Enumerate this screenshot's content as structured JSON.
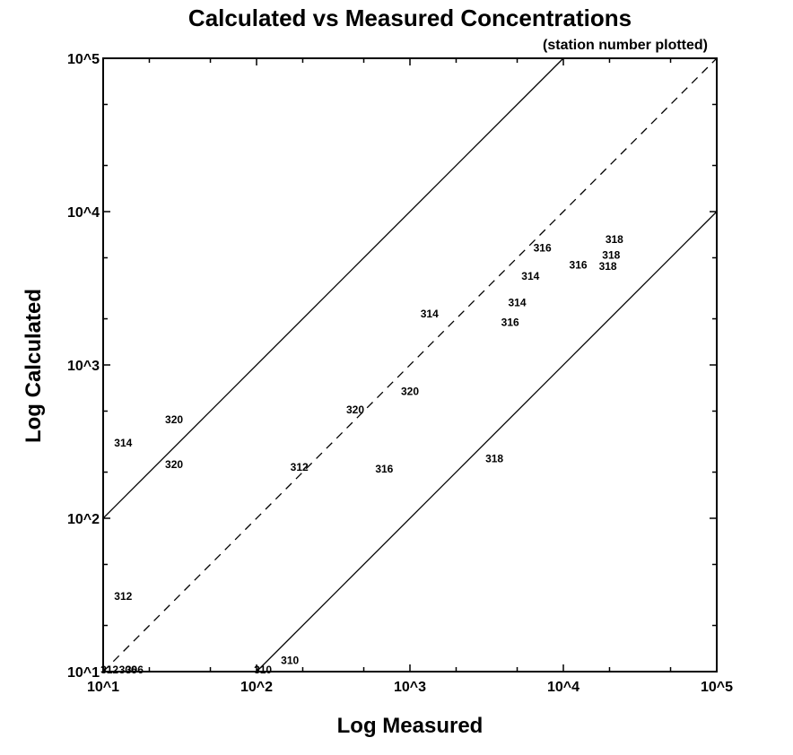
{
  "chart_data": {
    "type": "scatter",
    "title": "Calculated vs Measured Concentrations",
    "subtitle": "(station number plotted)",
    "xlabel": "Log Measured",
    "ylabel": "Log Calculated",
    "xscale": "log",
    "yscale": "log",
    "xlim": [
      10,
      100000
    ],
    "ylim": [
      10,
      100000
    ],
    "xticks": [
      {
        "value": 10,
        "label": "10^1"
      },
      {
        "value": 100,
        "label": "10^2"
      },
      {
        "value": 1000,
        "label": "10^3"
      },
      {
        "value": 10000,
        "label": "10^4"
      },
      {
        "value": 100000,
        "label": "10^5"
      }
    ],
    "yticks": [
      {
        "value": 10,
        "label": "10^1"
      },
      {
        "value": 100,
        "label": "10^2"
      },
      {
        "value": 1000,
        "label": "10^3"
      },
      {
        "value": 10000,
        "label": "10^4"
      },
      {
        "value": 100000,
        "label": "10^5"
      }
    ],
    "reference_lines": [
      {
        "name": "factor-of-10-over",
        "factor": 10,
        "style": "solid"
      },
      {
        "name": "one-to-one",
        "factor": 1,
        "style": "dashed"
      },
      {
        "name": "factor-of-10-under",
        "factor": 0.1,
        "style": "solid"
      }
    ],
    "points": [
      {
        "label": "314",
        "x": 13.5,
        "y": 310
      },
      {
        "label": "312",
        "x": 13.5,
        "y": 31
      },
      {
        "label": "312",
        "x": 11,
        "y": 10.3
      },
      {
        "label": "306",
        "x": 14.5,
        "y": 10.3
      },
      {
        "label": "306",
        "x": 16,
        "y": 10.3
      },
      {
        "label": "310",
        "x": 110,
        "y": 10.3
      },
      {
        "label": "310",
        "x": 165,
        "y": 11.8
      },
      {
        "label": "320",
        "x": 29,
        "y": 440
      },
      {
        "label": "320",
        "x": 29,
        "y": 225
      },
      {
        "label": "312",
        "x": 190,
        "y": 215
      },
      {
        "label": "320",
        "x": 440,
        "y": 510
      },
      {
        "label": "320",
        "x": 1000,
        "y": 670
      },
      {
        "label": "316",
        "x": 680,
        "y": 210
      },
      {
        "label": "314",
        "x": 1340,
        "y": 2150
      },
      {
        "label": "314",
        "x": 6100,
        "y": 3800
      },
      {
        "label": "314",
        "x": 5000,
        "y": 2550
      },
      {
        "label": "316",
        "x": 4500,
        "y": 1900
      },
      {
        "label": "316",
        "x": 7300,
        "y": 5800
      },
      {
        "label": "316",
        "x": 12500,
        "y": 4500
      },
      {
        "label": "318",
        "x": 21500,
        "y": 6600
      },
      {
        "label": "318",
        "x": 20500,
        "y": 5200
      },
      {
        "label": "318",
        "x": 19500,
        "y": 4400
      },
      {
        "label": "318",
        "x": 3550,
        "y": 245
      }
    ]
  }
}
